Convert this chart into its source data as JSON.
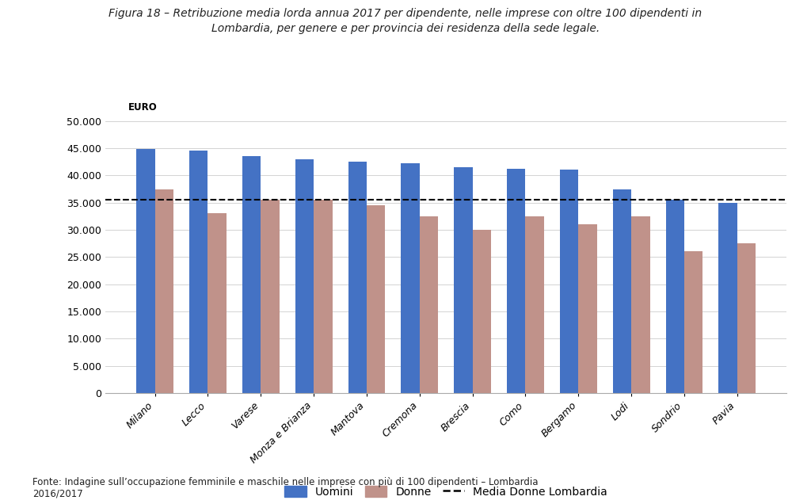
{
  "title_line1": "Figura 18 – Retribuzione media lorda annua 2017 per dipendente, nelle imprese con oltre 100 dipendenti in",
  "title_line2": "Lombardia, per genere e per provincia dei residenza della sede legale.",
  "categories": [
    "Milano",
    "Lecco",
    "Varese",
    "Monza e Brianza",
    "Mantova",
    "Cremona",
    "Brescia",
    "Como",
    "Bergamo",
    "Lodi",
    "Sondrio",
    "Pavia"
  ],
  "uomini": [
    44800,
    44500,
    43500,
    43000,
    42500,
    42200,
    41500,
    41200,
    41000,
    37500,
    35500,
    35000
  ],
  "donne": [
    37500,
    33000,
    35500,
    35500,
    34500,
    32500,
    30000,
    32500,
    31000,
    32500,
    26000,
    27500
  ],
  "media_donne_lombardia": 35500,
  "color_uomini": "#4472C4",
  "color_donne": "#C0928A",
  "color_media": "#000000",
  "euro_label": "EURO",
  "ylim": [
    0,
    50000
  ],
  "yticks": [
    0,
    5000,
    10000,
    15000,
    20000,
    25000,
    30000,
    35000,
    40000,
    45000,
    50000
  ],
  "legend_uomini": "Uomini",
  "legend_donne": "Donne",
  "legend_media": "Media Donne Lombardia",
  "source_text": "Fonte: Indagine sull’occupazione femminile e maschile nelle imprese con più di 100 dipendenti – Lombardia\n2016/2017",
  "background_color": "#ffffff"
}
